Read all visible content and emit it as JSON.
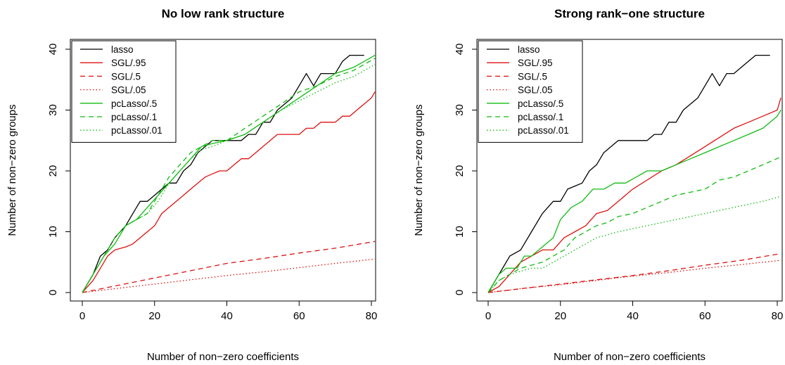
{
  "chart_data": [
    {
      "type": "line",
      "title": "No low rank structure",
      "xlabel": "Number of non−zero coefficients",
      "ylabel": "Number of non−zero groups",
      "xlim": [
        0,
        81
      ],
      "ylim": [
        0,
        40
      ],
      "xticks": [
        0,
        20,
        40,
        60,
        80
      ],
      "yticks": [
        0,
        10,
        20,
        30,
        40
      ],
      "legend_position": "top-left",
      "series": [
        {
          "name": "lasso",
          "color": "#000000",
          "dash": "solid",
          "x": [
            0,
            3,
            5,
            7,
            9,
            12,
            14,
            16,
            18,
            20,
            22,
            24,
            26,
            28,
            30,
            32,
            34,
            36,
            38,
            40,
            42,
            44,
            46,
            48,
            50,
            52,
            54,
            56,
            58,
            60,
            62,
            64,
            66,
            68,
            70,
            72,
            74,
            76,
            78
          ],
          "y": [
            0,
            3,
            6,
            7,
            9,
            11,
            13,
            15,
            15,
            16,
            17,
            18,
            18,
            20,
            21,
            23,
            24,
            25,
            25,
            25,
            25,
            25,
            26,
            26,
            28,
            28,
            30,
            31,
            32,
            34,
            36,
            34,
            36,
            36,
            36,
            38,
            39,
            39,
            39
          ]
        },
        {
          "name": "SGL/.95",
          "color": "#dd1111",
          "dash": "solid",
          "x": [
            0,
            3,
            5,
            7,
            9,
            12,
            14,
            16,
            18,
            20,
            22,
            24,
            26,
            28,
            30,
            32,
            34,
            36,
            38,
            40,
            42,
            44,
            46,
            48,
            50,
            52,
            54,
            56,
            58,
            60,
            62,
            64,
            66,
            68,
            70,
            72,
            74,
            76,
            78,
            80,
            81
          ],
          "y": [
            0,
            2,
            4,
            6,
            7,
            7.5,
            8,
            9,
            10,
            11,
            13,
            14,
            15,
            16,
            17,
            18,
            19,
            19.5,
            20,
            20,
            21,
            22,
            22,
            23,
            24,
            25,
            26,
            26,
            26,
            26,
            27,
            27,
            28,
            28,
            28,
            29,
            29,
            30,
            31,
            32,
            33
          ]
        },
        {
          "name": "SGL/.5",
          "color": "#dd1111",
          "dash": "7,5",
          "x": [
            0,
            10,
            20,
            30,
            40,
            50,
            60,
            70,
            81
          ],
          "y": [
            0,
            1.2,
            2.4,
            3.6,
            4.8,
            5.6,
            6.5,
            7.3,
            8.4
          ]
        },
        {
          "name": "SGL/.05",
          "color": "#dd1111",
          "dash": "1.5,3",
          "x": [
            0,
            10,
            20,
            30,
            40,
            50,
            60,
            70,
            81
          ],
          "y": [
            0,
            0.7,
            1.4,
            2.1,
            2.8,
            3.4,
            4.1,
            4.8,
            5.5
          ]
        },
        {
          "name": "pcLasso/.5",
          "color": "#11bb11",
          "dash": "solid",
          "x": [
            0,
            3,
            6,
            9,
            12,
            15,
            18,
            21,
            24,
            27,
            30,
            33,
            36,
            40,
            45,
            50,
            55,
            60,
            65,
            70,
            75,
            78,
            81
          ],
          "y": [
            0,
            3,
            6,
            8,
            11,
            12,
            14,
            16,
            18,
            20,
            22,
            24,
            24.5,
            25,
            26,
            28,
            30,
            32,
            34,
            36,
            37,
            38,
            39
          ]
        },
        {
          "name": "pcLasso/.1",
          "color": "#11bb11",
          "dash": "7,5",
          "x": [
            0,
            3,
            6,
            9,
            12,
            15,
            18,
            21,
            24,
            27,
            30,
            33,
            36,
            40,
            45,
            50,
            55,
            60,
            65,
            70,
            75,
            78,
            81
          ],
          "y": [
            0,
            3,
            6,
            9,
            11,
            12,
            13,
            16,
            19,
            21,
            23,
            24,
            25,
            25,
            27,
            29,
            31,
            33,
            34,
            35.5,
            36.5,
            37.5,
            38.5
          ]
        },
        {
          "name": "pcLasso/.01",
          "color": "#11bb11",
          "dash": "1.5,3",
          "x": [
            0,
            3,
            6,
            9,
            12,
            15,
            18,
            21,
            24,
            27,
            30,
            33,
            36,
            40,
            45,
            50,
            55,
            60,
            65,
            70,
            75,
            78,
            81
          ],
          "y": [
            0,
            3,
            6,
            9,
            11,
            12,
            13,
            15,
            18,
            20,
            22,
            23.5,
            24,
            25,
            26,
            28,
            30,
            31.5,
            33,
            34.5,
            35.5,
            36.5,
            37.5
          ]
        }
      ]
    },
    {
      "type": "line",
      "title": "Strong rank−one structure",
      "xlabel": "Number of non−zero coefficients",
      "ylabel": "Number of non−zero groups",
      "xlim": [
        0,
        81
      ],
      "ylim": [
        0,
        40
      ],
      "xticks": [
        0,
        20,
        40,
        60,
        80
      ],
      "yticks": [
        0,
        10,
        20,
        30,
        40
      ],
      "legend_position": "top-left",
      "series": [
        {
          "name": "lasso",
          "color": "#000000",
          "dash": "solid",
          "x": [
            0,
            3,
            6,
            9,
            12,
            15,
            18,
            20,
            22,
            24,
            26,
            28,
            30,
            32,
            34,
            36,
            38,
            40,
            42,
            44,
            46,
            48,
            50,
            52,
            54,
            56,
            58,
            60,
            62,
            64,
            66,
            68,
            70,
            72,
            74,
            76,
            78
          ],
          "y": [
            0,
            3,
            6,
            7,
            10,
            13,
            15,
            15,
            17,
            17.5,
            18,
            20,
            21,
            23,
            24,
            25,
            25,
            25,
            25,
            25,
            26,
            26,
            28,
            28,
            30,
            31,
            32,
            34,
            36,
            34,
            36,
            36,
            37,
            38,
            39,
            39,
            39
          ]
        },
        {
          "name": "SGL/.95",
          "color": "#dd1111",
          "dash": "solid",
          "x": [
            0,
            3,
            6,
            9,
            12,
            15,
            18,
            21,
            24,
            27,
            30,
            33,
            36,
            40,
            44,
            48,
            52,
            56,
            60,
            64,
            68,
            72,
            76,
            80,
            81
          ],
          "y": [
            0,
            1,
            3,
            5,
            6,
            7,
            7,
            9,
            10,
            11,
            13,
            13.5,
            15,
            17,
            18.5,
            20,
            21,
            22.5,
            24,
            25.5,
            27,
            28,
            29,
            30,
            32
          ]
        },
        {
          "name": "SGL/.5",
          "color": "#dd1111",
          "dash": "7,5",
          "x": [
            0,
            10,
            20,
            30,
            40,
            50,
            60,
            70,
            81
          ],
          "y": [
            0,
            0.7,
            1.4,
            2.1,
            2.8,
            3.6,
            4.5,
            5.3,
            6.4
          ]
        },
        {
          "name": "SGL/.05",
          "color": "#dd1111",
          "dash": "1.5,3",
          "x": [
            0,
            10,
            20,
            30,
            40,
            50,
            60,
            70,
            81
          ],
          "y": [
            0,
            0.7,
            1.3,
            2.0,
            2.7,
            3.3,
            4.0,
            4.6,
            5.3
          ]
        },
        {
          "name": "pcLasso/.5",
          "color": "#11bb11",
          "dash": "solid",
          "x": [
            0,
            3,
            5,
            8,
            10,
            12,
            14,
            16,
            18,
            20,
            23,
            26,
            29,
            32,
            35,
            38,
            41,
            44,
            48,
            52,
            56,
            60,
            64,
            68,
            72,
            76,
            80,
            81
          ],
          "y": [
            0,
            3,
            4,
            4,
            6,
            6,
            7,
            8,
            9,
            12,
            14,
            15,
            17,
            17,
            18,
            18,
            19,
            20,
            20,
            21,
            22,
            23,
            24,
            25,
            26,
            27,
            29,
            30
          ]
        },
        {
          "name": "pcLasso/.1",
          "color": "#11bb11",
          "dash": "7,5",
          "x": [
            0,
            3,
            6,
            9,
            12,
            15,
            18,
            21,
            24,
            27,
            30,
            33,
            36,
            40,
            44,
            48,
            52,
            56,
            60,
            64,
            68,
            72,
            76,
            81
          ],
          "y": [
            0,
            2,
            3,
            4,
            4.5,
            5,
            6,
            7,
            9,
            10,
            11,
            11.5,
            12.5,
            13,
            14,
            15,
            16,
            16.5,
            17,
            18.5,
            19,
            20,
            21,
            22.3
          ]
        },
        {
          "name": "pcLasso/.01",
          "color": "#11bb11",
          "dash": "1.5,3",
          "x": [
            0,
            3,
            6,
            9,
            12,
            15,
            18,
            21,
            24,
            27,
            30,
            33,
            36,
            40,
            44,
            48,
            52,
            56,
            60,
            64,
            68,
            72,
            76,
            81
          ],
          "y": [
            0,
            2,
            3,
            3.5,
            4,
            4,
            5,
            6,
            7,
            8,
            9,
            9.5,
            10,
            10.5,
            11,
            11.5,
            12,
            12.5,
            13,
            13.5,
            14,
            14.5,
            15,
            15.8
          ]
        }
      ]
    }
  ]
}
